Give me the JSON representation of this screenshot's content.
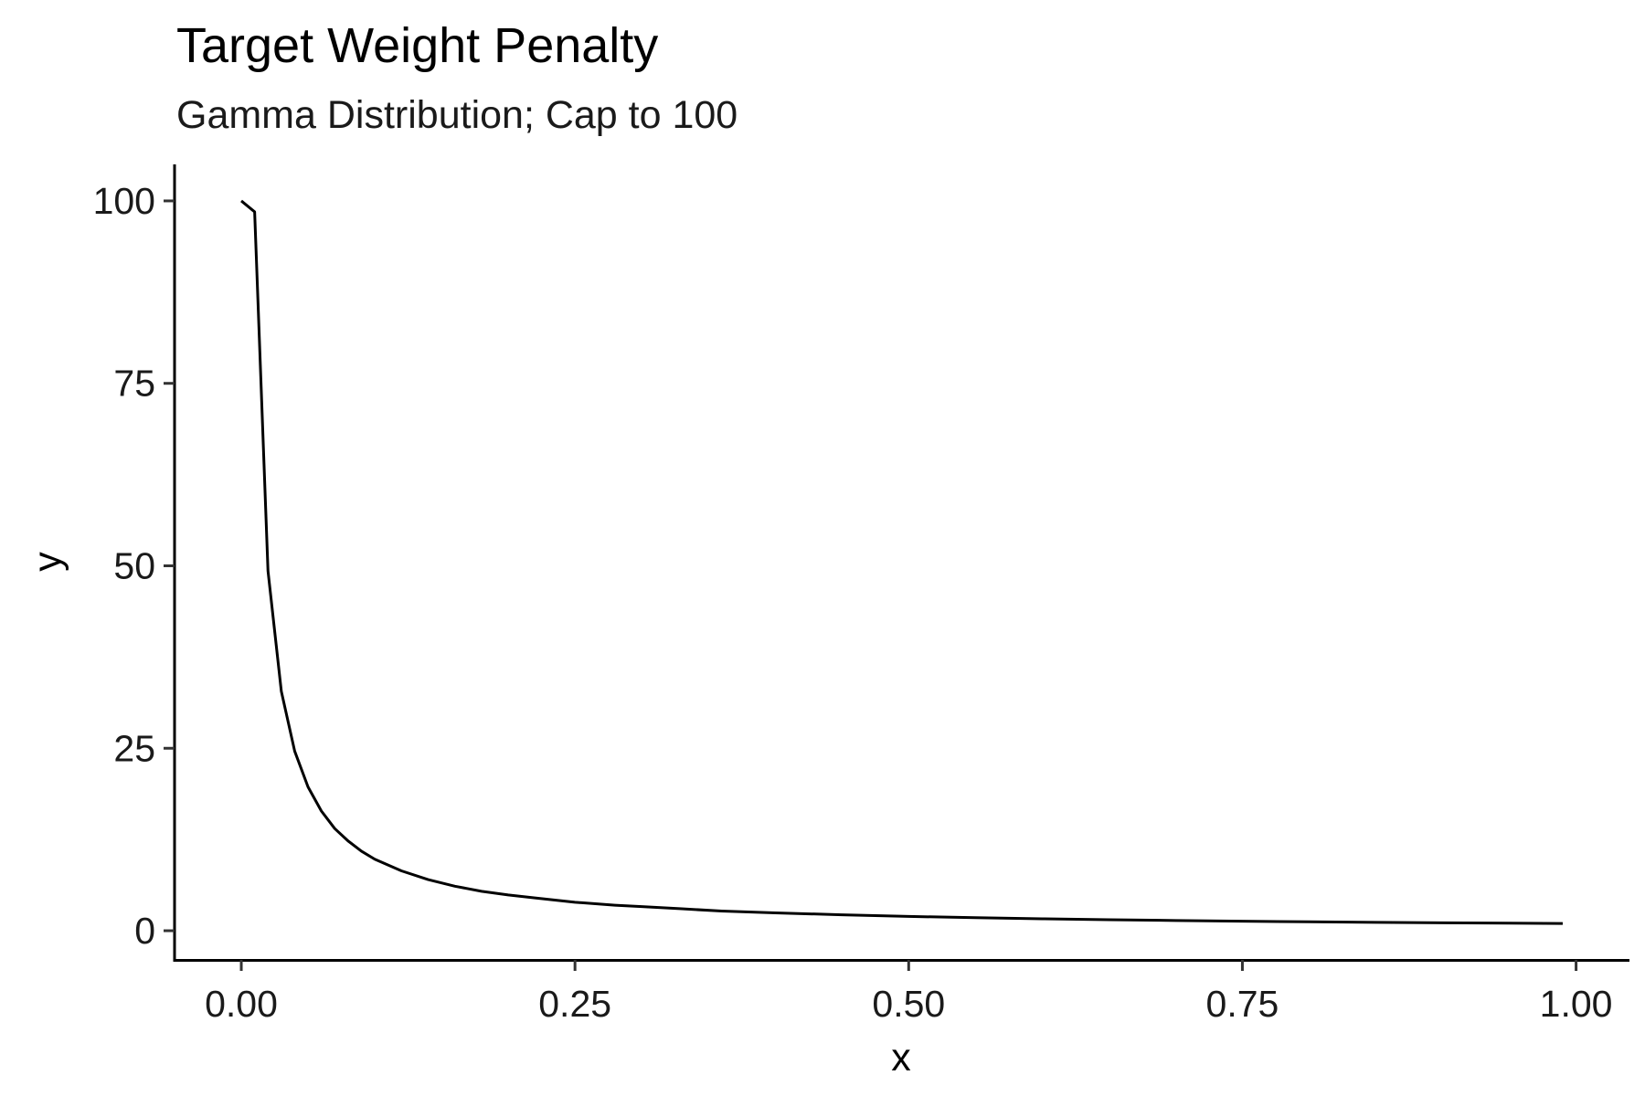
{
  "chart_data": {
    "type": "line",
    "title": "Target Weight Penalty",
    "subtitle": "Gamma Distribution; Cap to 100",
    "xlabel": "x",
    "ylabel": "y",
    "xlim": [
      -0.05,
      1.04
    ],
    "ylim": [
      -4,
      105
    ],
    "xticks": [
      0.0,
      0.25,
      0.5,
      0.75,
      1.0
    ],
    "xtick_labels": [
      "0.00",
      "0.25",
      "0.50",
      "0.75",
      "1.00"
    ],
    "yticks": [
      0,
      25,
      50,
      75,
      100
    ],
    "ytick_labels": [
      "0",
      "25",
      "50",
      "75",
      "100"
    ],
    "grid": false,
    "line_color": "#000000",
    "x": [
      0.0,
      0.01,
      0.02,
      0.03,
      0.04,
      0.05,
      0.06,
      0.07,
      0.08,
      0.09,
      0.1,
      0.12,
      0.14,
      0.16,
      0.18,
      0.2,
      0.22,
      0.25,
      0.28,
      0.3,
      0.33,
      0.36,
      0.4,
      0.45,
      0.5,
      0.55,
      0.6,
      0.65,
      0.7,
      0.75,
      0.8,
      0.85,
      0.9,
      0.95,
      0.99
    ],
    "y": [
      100,
      98.5,
      49.3,
      32.8,
      24.6,
      19.7,
      16.4,
      14.0,
      12.3,
      10.9,
      9.8,
      8.2,
      7.0,
      6.1,
      5.4,
      4.9,
      4.5,
      3.9,
      3.5,
      3.3,
      3.0,
      2.7,
      2.45,
      2.18,
      1.96,
      1.78,
      1.63,
      1.51,
      1.4,
      1.31,
      1.22,
      1.15,
      1.09,
      1.03,
      0.99
    ]
  }
}
